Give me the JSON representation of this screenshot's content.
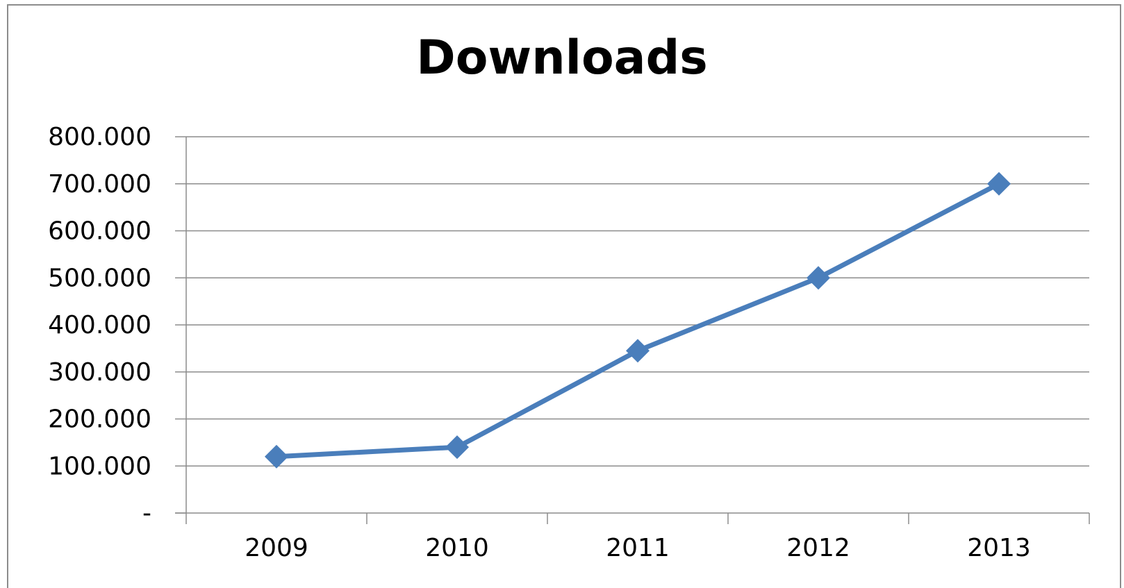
{
  "chart_data": {
    "type": "line",
    "title": "Downloads",
    "xlabel": "",
    "ylabel": "",
    "categories": [
      "2009",
      "2010",
      "2011",
      "2012",
      "2013"
    ],
    "series": [
      {
        "values": [
          120000,
          140000,
          345000,
          500000,
          700000
        ],
        "color": "#4a7ebb",
        "marker": "diamond"
      }
    ],
    "ylim": [
      0,
      800000
    ],
    "yticks": [
      0,
      100000,
      200000,
      300000,
      400000,
      500000,
      600000,
      700000,
      800000
    ],
    "ytick_labels": [
      "-",
      "100.000",
      "200.000",
      "300.000",
      "400.000",
      "500.000",
      "600.000",
      "700.000",
      "800.000"
    ],
    "grid": true,
    "legend": "none"
  }
}
